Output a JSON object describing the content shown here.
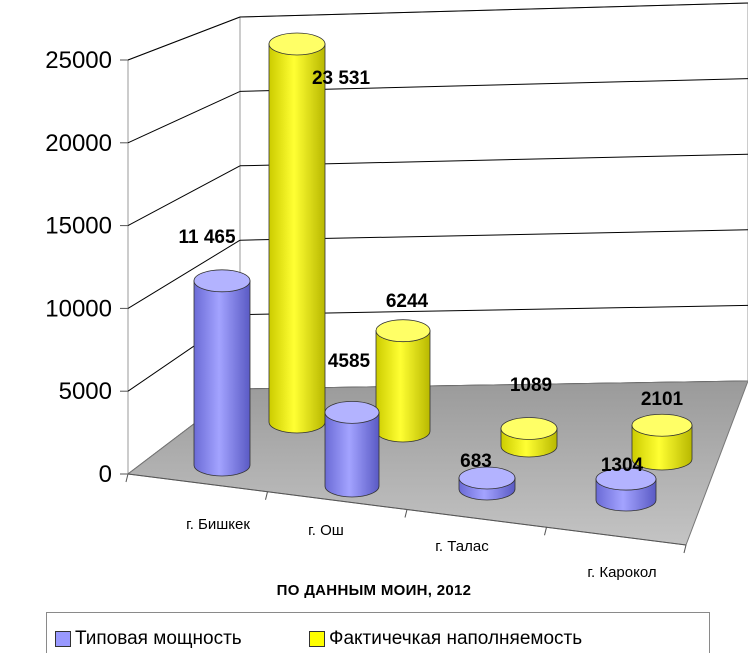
{
  "chart_data": {
    "type": "bar",
    "categories": [
      "г. Бишкек",
      "г. Ош",
      "г. Талас",
      "г. Карокол"
    ],
    "series": [
      {
        "name": "Типовая мощность",
        "values": [
          11465,
          4585,
          683,
          1304
        ],
        "labels": [
          "11 465",
          "4585",
          "683",
          "1304"
        ],
        "color": "#9999ff"
      },
      {
        "name": "Фактичечкая наполняемость",
        "values": [
          23531,
          6244,
          1089,
          2101
        ],
        "labels": [
          "23 531",
          "6244",
          "1089",
          "2101"
        ],
        "color": "#ffff00"
      }
    ],
    "y_ticks": [
      "0",
      "5000",
      "10000",
      "15000",
      "20000",
      "25000"
    ],
    "ylim": [
      0,
      25000
    ],
    "grid": true,
    "legend_position": "bottom",
    "source_note": "ПО ДАННЫМ МОИН, 2012"
  }
}
